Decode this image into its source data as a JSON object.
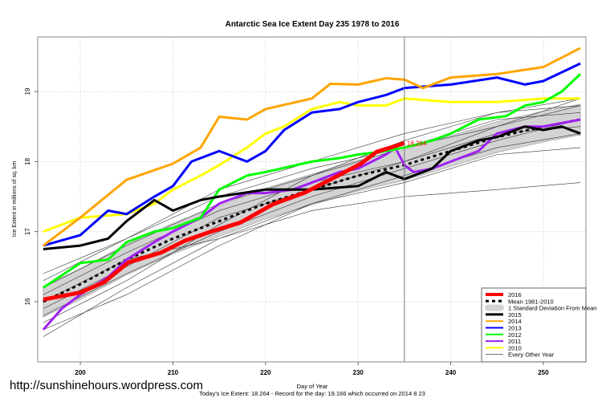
{
  "chart_data": {
    "type": "line",
    "title": "Antarctic Sea Ice Extent Day 235 1978 to 2016",
    "xlabel": "Day of Year",
    "ylabel": "Ice Extent in millions of sq. km",
    "subtitle": "Today's Ice Extent: 18.264  - Record for the day: 19.166 which occurred on 2014 8 23",
    "watermark": "http://sunshinehours.wordpress.com",
    "current_value_label": "18.264",
    "current_day": 235,
    "xlim": [
      195.4,
      254.6
    ],
    "ylim": [
      15.14,
      19.78
    ],
    "xticks": [
      200,
      210,
      220,
      230,
      240,
      250
    ],
    "yticks": [
      16,
      17,
      18,
      19
    ],
    "grid": true,
    "legend_position": "bottom-right",
    "std_band": {
      "name": "1 Standard Deviation From Mean",
      "color": "#d3d3d3",
      "sd": 0.22
    },
    "mean": {
      "name": "Mean 1981-2010",
      "color": "#000000",
      "x": [
        196,
        200,
        205,
        210,
        215,
        220,
        225,
        230,
        235,
        240,
        245,
        250,
        254
      ],
      "y": [
        16.0,
        16.25,
        16.6,
        16.9,
        17.15,
        17.4,
        17.6,
        17.8,
        17.95,
        18.15,
        18.35,
        18.5,
        18.6
      ]
    },
    "series": [
      {
        "name": "2016",
        "color": "#ff0000",
        "width": 5,
        "x": [
          196,
          200,
          202.6,
          205.2,
          208.7,
          211.3,
          213.9,
          217.3,
          220.8,
          224.3,
          227.7,
          230.3,
          232,
          234,
          235
        ],
        "y": [
          16.03,
          16.13,
          16.28,
          16.56,
          16.7,
          16.87,
          16.99,
          17.13,
          17.39,
          17.56,
          17.79,
          17.97,
          18.14,
          18.22,
          18.264
        ]
      },
      {
        "name": "2015",
        "color": "#000000",
        "width": 3,
        "x": [
          196,
          200,
          203,
          205,
          208,
          210,
          213,
          215,
          220,
          225,
          230,
          233,
          235,
          238,
          240,
          243,
          245,
          248,
          250,
          252,
          254
        ],
        "y": [
          16.75,
          16.8,
          16.9,
          17.15,
          17.45,
          17.3,
          17.45,
          17.5,
          17.6,
          17.6,
          17.65,
          17.85,
          17.75,
          17.9,
          18.15,
          18.3,
          18.35,
          18.5,
          18.45,
          18.5,
          18.4
        ]
      },
      {
        "name": "2014",
        "color": "#ffa500",
        "width": 3,
        "x": [
          196,
          200,
          205,
          210,
          213,
          215,
          218,
          220,
          225,
          227,
          230,
          233,
          235,
          237,
          240,
          245,
          250,
          254
        ],
        "y": [
          16.8,
          17.2,
          17.74,
          17.97,
          18.2,
          18.64,
          18.6,
          18.75,
          18.9,
          19.11,
          19.1,
          19.19,
          19.17,
          19.05,
          19.2,
          19.25,
          19.35,
          19.62
        ]
      },
      {
        "name": "2013",
        "color": "#0000ff",
        "width": 3,
        "x": [
          196,
          200,
          203,
          205,
          208,
          210,
          212,
          215,
          218,
          220,
          222,
          225,
          228,
          230,
          233,
          235,
          240,
          245,
          248,
          250,
          254
        ],
        "y": [
          16.8,
          16.95,
          17.3,
          17.25,
          17.5,
          17.65,
          18.0,
          18.15,
          18.0,
          18.15,
          18.45,
          18.7,
          18.75,
          18.85,
          18.95,
          19.05,
          19.1,
          19.2,
          19.1,
          19.15,
          19.4
        ]
      },
      {
        "name": "2012",
        "color": "#00ff00",
        "width": 3,
        "x": [
          196,
          200,
          203,
          205,
          208,
          210,
          213,
          215,
          218,
          220,
          225,
          228,
          230,
          233,
          235,
          238,
          240,
          243,
          246,
          248,
          250,
          252,
          254
        ],
        "y": [
          16.2,
          16.55,
          16.6,
          16.85,
          17.0,
          17.05,
          17.2,
          17.6,
          17.8,
          17.85,
          18.0,
          18.05,
          18.1,
          18.15,
          18.2,
          18.3,
          18.4,
          18.6,
          18.65,
          18.8,
          18.85,
          19.0,
          19.25
        ]
      },
      {
        "name": "2011",
        "color": "#a020f0",
        "width": 3,
        "x": [
          196,
          198,
          200,
          203,
          205,
          208,
          210,
          213,
          215,
          218,
          220,
          223,
          225,
          228,
          230,
          233,
          234,
          235,
          236,
          238,
          240,
          243,
          245,
          248,
          250,
          254
        ],
        "y": [
          15.6,
          15.9,
          16.1,
          16.35,
          16.6,
          16.85,
          17.0,
          17.2,
          17.4,
          17.55,
          17.55,
          17.6,
          17.7,
          17.85,
          17.9,
          18.1,
          18.2,
          17.95,
          17.85,
          17.9,
          18.0,
          18.15,
          18.4,
          18.5,
          18.5,
          18.6
        ]
      },
      {
        "name": "2010",
        "color": "#ffff00",
        "width": 3,
        "x": [
          196,
          200,
          205,
          208,
          210,
          213,
          215,
          218,
          220,
          222,
          225,
          228,
          230,
          233,
          235,
          240,
          245,
          250,
          254
        ],
        "y": [
          17.0,
          17.2,
          17.25,
          17.4,
          17.6,
          17.8,
          17.95,
          18.2,
          18.4,
          18.5,
          18.75,
          18.85,
          18.8,
          18.8,
          18.9,
          18.85,
          18.85,
          18.9,
          18.9
        ]
      }
    ],
    "other_years": {
      "name": "Every Other Year",
      "color": "#000000",
      "x": [
        196,
        205,
        215,
        225,
        235,
        245,
        254
      ],
      "y": [
        [
          15.5,
          16.2,
          16.9,
          17.4,
          17.8,
          18.2,
          18.4
        ],
        [
          15.8,
          16.4,
          17.0,
          17.5,
          17.9,
          18.3,
          18.6
        ],
        [
          16.1,
          16.7,
          17.3,
          17.7,
          18.0,
          18.5,
          18.8
        ],
        [
          16.3,
          16.9,
          17.5,
          17.9,
          18.2,
          18.6,
          18.7
        ],
        [
          15.9,
          16.5,
          17.2,
          17.6,
          18.0,
          18.4,
          18.5
        ],
        [
          16.0,
          16.6,
          16.9,
          17.3,
          17.5,
          17.6,
          17.7
        ],
        [
          15.7,
          16.3,
          17.1,
          17.8,
          18.2,
          18.5,
          18.9
        ],
        [
          16.2,
          16.8,
          17.4,
          17.8,
          18.3,
          18.7,
          18.9
        ],
        [
          15.6,
          16.1,
          16.8,
          17.4,
          17.7,
          18.1,
          18.2
        ],
        [
          16.4,
          16.9,
          17.6,
          18.0,
          18.4,
          18.7,
          18.8
        ]
      ]
    }
  },
  "legend": [
    "2016",
    "Mean 1981-2010",
    "1 Standard Deviation From Mean",
    "2015",
    "2014",
    "2013",
    "2012",
    "2011",
    "2010",
    "Every Other Year"
  ]
}
